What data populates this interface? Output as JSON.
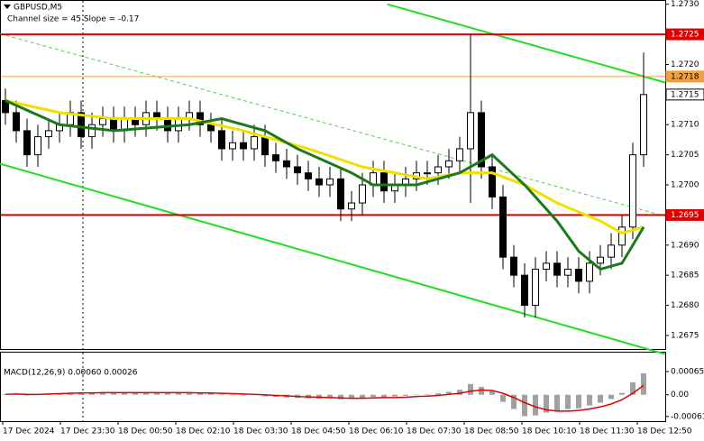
{
  "chart_data": {
    "type": "candlestick",
    "title": "GBPUSD,M5",
    "subtitle": "Channel size = 45 Slope = -0.17",
    "x_labels": [
      "17 Dec 2024",
      "17 Dec 23:30",
      "18 Dec 00:50",
      "18 Dec 02:10",
      "18 Dec 03:30",
      "18 Dec 04:50",
      "18 Dec 06:10",
      "18 Dec 07:30",
      "18 Dec 08:50",
      "18 Dec 10:10",
      "18 Dec 11:30",
      "18 Dec 12:50"
    ],
    "open": [
      1.2714,
      1.2712,
      1.2709,
      1.2705,
      1.2708,
      1.2709,
      1.271,
      1.2712,
      1.2708,
      1.271,
      1.2711,
      1.2709,
      1.2711,
      1.271,
      1.2712,
      1.2711,
      1.2709,
      1.2711,
      1.2712,
      1.271,
      1.2709,
      1.2706,
      1.2707,
      1.2706,
      1.2708,
      1.2705,
      1.2704,
      1.2703,
      1.2702,
      1.2701,
      1.27,
      1.2701,
      1.2696,
      1.2697,
      1.27,
      1.2702,
      1.2699,
      1.27,
      1.2701,
      1.2702,
      1.2702,
      1.2703,
      1.2704,
      1.2706,
      1.2712,
      1.2703,
      1.2698,
      1.2688,
      1.2685,
      1.268,
      1.2686,
      1.2687,
      1.2685,
      1.2686,
      1.2684,
      1.2687,
      1.2688,
      1.269,
      1.2693,
      1.2705
    ],
    "high": [
      1.2716,
      1.2714,
      1.2711,
      1.271,
      1.2711,
      1.2712,
      1.2714,
      1.2714,
      1.2712,
      1.2713,
      1.2713,
      1.2713,
      1.2713,
      1.2714,
      1.2714,
      1.2713,
      1.2713,
      1.2714,
      1.2714,
      1.2712,
      1.2711,
      1.2709,
      1.2709,
      1.271,
      1.271,
      1.2707,
      1.2706,
      1.2705,
      1.2704,
      1.2703,
      1.2703,
      1.2703,
      1.2699,
      1.2702,
      1.2704,
      1.2704,
      1.2702,
      1.2703,
      1.2704,
      1.2704,
      1.2705,
      1.2706,
      1.2708,
      1.2725,
      1.2714,
      1.2705,
      1.27,
      1.269,
      1.2687,
      1.2688,
      1.2689,
      1.2689,
      1.2688,
      1.2688,
      1.2689,
      1.269,
      1.2692,
      1.2695,
      1.2707,
      1.2722
    ],
    "low": [
      1.271,
      1.2707,
      1.2703,
      1.2703,
      1.2706,
      1.2707,
      1.2708,
      1.2706,
      1.2706,
      1.2708,
      1.2707,
      1.2707,
      1.2708,
      1.2708,
      1.2709,
      1.2707,
      1.2707,
      1.2709,
      1.2708,
      1.2707,
      1.2704,
      1.2704,
      1.2704,
      1.2704,
      1.2703,
      1.2702,
      1.2701,
      1.27,
      1.2699,
      1.2698,
      1.2698,
      1.2694,
      1.2694,
      1.2695,
      1.2698,
      1.2697,
      1.2697,
      1.2698,
      1.2699,
      1.27,
      1.27,
      1.2701,
      1.2702,
      1.2697,
      1.2701,
      1.2696,
      1.2686,
      1.2683,
      1.2678,
      1.2678,
      1.2684,
      1.2683,
      1.2683,
      1.2682,
      1.2682,
      1.2685,
      1.2686,
      1.2688,
      1.2691,
      1.2703
    ],
    "close": [
      1.2712,
      1.2709,
      1.2705,
      1.2708,
      1.2709,
      1.271,
      1.2712,
      1.2708,
      1.271,
      1.2711,
      1.2709,
      1.2711,
      1.271,
      1.2712,
      1.2711,
      1.2709,
      1.2711,
      1.2712,
      1.271,
      1.2709,
      1.2706,
      1.2707,
      1.2706,
      1.2708,
      1.2705,
      1.2704,
      1.2703,
      1.2702,
      1.2701,
      1.27,
      1.2701,
      1.2696,
      1.2697,
      1.27,
      1.2702,
      1.2699,
      1.27,
      1.2701,
      1.2702,
      1.2702,
      1.2703,
      1.2704,
      1.2706,
      1.2712,
      1.2703,
      1.2698,
      1.2688,
      1.2685,
      1.268,
      1.2686,
      1.2687,
      1.2685,
      1.2686,
      1.2684,
      1.2687,
      1.2688,
      1.269,
      1.2693,
      1.2705,
      1.2715
    ],
    "ylim": [
      1.26729,
      1.27307
    ],
    "yticks": [
      {
        "value": 1.273,
        "label": "1.2730"
      },
      {
        "value": 1.272,
        "label": "1.2720"
      },
      {
        "value": 1.271,
        "label": "1.2710"
      },
      {
        "value": 1.2705,
        "label": "1.2705"
      },
      {
        "value": 1.27,
        "label": "1.2700"
      },
      {
        "value": 1.269,
        "label": "1.2690"
      },
      {
        "value": 1.2685,
        "label": "1.2685"
      },
      {
        "value": 1.268,
        "label": "1.2680"
      },
      {
        "value": 1.2675,
        "label": "1.2675"
      }
    ],
    "series": [
      {
        "color": "#f0e000",
        "x": [
          0,
          5,
          10,
          17,
          22,
          28,
          33,
          39,
          42,
          45,
          48,
          51,
          55,
          57,
          59
        ],
        "values": [
          1.2714,
          1.2712,
          1.2711,
          1.2711,
          1.2709,
          1.2706,
          1.2703,
          1.2701,
          1.2702,
          1.2702,
          1.27,
          1.2697,
          1.2694,
          1.2692,
          1.2693
        ]
      },
      {
        "color": "#1a7a1a",
        "x": [
          0,
          5,
          10,
          17,
          20,
          24,
          27,
          32,
          34,
          38,
          42,
          45,
          48,
          51,
          53,
          55,
          57,
          59
        ],
        "values": [
          1.2714,
          1.271,
          1.2709,
          1.271,
          1.2711,
          1.2709,
          1.2706,
          1.2702,
          1.27,
          1.27,
          1.2702,
          1.2705,
          1.27,
          1.2694,
          1.2689,
          1.2686,
          1.2687,
          1.2693
        ]
      }
    ],
    "channel": [
      {
        "color": "#22dd22",
        "x": [
          35.3,
          61
        ],
        "values": [
          1.273,
          1.2717
        ]
      },
      {
        "color": "#22dd22",
        "x": [
          -0.5,
          61
        ],
        "values": [
          1.27035,
          1.26719
        ]
      },
      {
        "color": "#55cc55",
        "dashed": true,
        "x": [
          -0.5,
          61
        ],
        "values": [
          1.27251,
          1.26948
        ]
      }
    ],
    "levels": [
      {
        "value": 1.2725,
        "label": "1.2725",
        "color": "#e00000"
      },
      {
        "value": 1.2718,
        "label": "1.2718",
        "color": "#f0a040"
      },
      {
        "value": 1.2715,
        "label": "1.2715",
        "color": "#ffffff"
      },
      {
        "value": 1.2695,
        "label": "1.2695",
        "color": "#e00000"
      }
    ],
    "macd": {
      "title": "MACD(12,26,9) 0.00060 0.00026",
      "ylim": [
        -0.00074,
        0.00118
      ],
      "yticks": [
        0.00065,
        {
          "value": 0,
          "label": "0.00"
        },
        -0.00061
      ],
      "histogram_color": "#a0a0a0",
      "signal_color": "#e00000",
      "histogram": [
        2e-05,
        3e-05,
        -2e-05,
        1e-05,
        3e-05,
        4e-05,
        6e-05,
        5e-05,
        6e-05,
        7e-05,
        6e-05,
        7e-05,
        6e-05,
        7e-05,
        6e-05,
        5e-05,
        6e-05,
        6e-05,
        5e-05,
        4e-05,
        1e-05,
        0,
        -2e-05,
        -1e-05,
        -4e-05,
        -6e-05,
        -8e-05,
        -9e-05,
        -0.0001,
        -0.00011,
        -0.0001,
        -0.00013,
        -0.00012,
        -9e-05,
        -6e-05,
        -7e-05,
        -5e-05,
        -3e-05,
        -1e-05,
        1e-05,
        4e-05,
        8e-05,
        0.00014,
        0.0003,
        0.00022,
        0.0001,
        -0.0002,
        -0.0004,
        -0.0006,
        -0.00058,
        -0.0005,
        -0.00045,
        -0.0004,
        -0.00038,
        -0.0003,
        -0.00022,
        -0.00012,
        5e-05,
        0.00035,
        0.0006
      ],
      "signal": [
        1e-05,
        2e-05,
        1e-05,
        1e-05,
        2e-05,
        3e-05,
        4e-05,
        5e-05,
        5e-05,
        6e-05,
        6e-05,
        6e-05,
        6e-05,
        6e-05,
        6e-05,
        6e-05,
        6e-05,
        6e-05,
        5e-05,
        5e-05,
        4e-05,
        3e-05,
        2e-05,
        1e-05,
        0,
        -2e-05,
        -3e-05,
        -5e-05,
        -6e-05,
        -7e-05,
        -8e-05,
        -9e-05,
        -0.0001,
        -0.0001,
        -9e-05,
        -8e-05,
        -8e-05,
        -7e-05,
        -5e-05,
        -4e-05,
        -2e-05,
        1e-05,
        4e-05,
        0.0001,
        0.00013,
        0.00012,
        4e-05,
        -8e-05,
        -0.00022,
        -0.00034,
        -0.00042,
        -0.00046,
        -0.00046,
        -0.00044,
        -0.0004,
        -0.00034,
        -0.00026,
        -0.00014,
        4e-05,
        0.00026
      ]
    }
  }
}
